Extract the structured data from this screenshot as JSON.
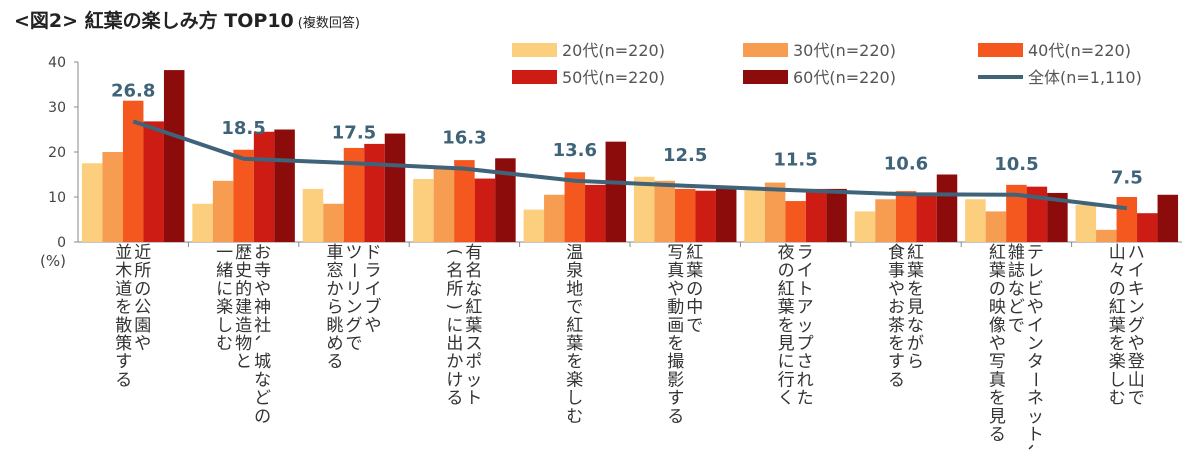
{
  "title": "<図2> 紅葉の楽しみ方 TOP10",
  "title_sub": "(複数回答)",
  "chart_data": {
    "type": "bar",
    "y_unit_label": "(%)",
    "ylim": [
      0,
      40
    ],
    "yticks": [
      "0",
      "10",
      "20",
      "30",
      "40"
    ],
    "categories": [
      [
        "近所の公園や",
        "並木道を散策する"
      ],
      [
        "お寺や神社、城などの",
        "歴史的建造物と",
        "一緒に楽しむ"
      ],
      [
        "ドライブや",
        "ツーリングで",
        "車窓から眺める"
      ],
      [
        "有名な紅葉スポット",
        "(名所)に出かける"
      ],
      [
        "温泉地で紅葉を楽しむ"
      ],
      [
        "紅葉の中で",
        "写真や動画を撮影する"
      ],
      [
        "ライトアップされた",
        "夜の紅葉を見に行く"
      ],
      [
        "紅葉を見ながら",
        "食事やお茶をする"
      ],
      [
        "テレビやインターネット、",
        "雑誌などで",
        "紅葉の映像や写真を見る"
      ],
      [
        "ハイキングや登山で",
        "山々の紅葉を楽しむ"
      ]
    ],
    "series": [
      {
        "name": "20代(n=220)",
        "color": "#fbcf7e",
        "values": [
          17.5,
          8.5,
          11.8,
          14.0,
          7.2,
          14.5,
          11.5,
          6.8,
          9.5,
          8.2
        ]
      },
      {
        "name": "30代(n=220)",
        "color": "#f79d52",
        "values": [
          20.0,
          13.6,
          8.5,
          16.5,
          10.5,
          13.6,
          13.2,
          9.5,
          6.8,
          2.7
        ]
      },
      {
        "name": "40代(n=220)",
        "color": "#f5581f",
        "values": [
          31.4,
          20.5,
          20.9,
          18.2,
          15.5,
          11.8,
          9.1,
          11.3,
          12.7,
          10.0
        ]
      },
      {
        "name": "50代(n=220)",
        "color": "#cc1c14",
        "values": [
          26.8,
          24.5,
          21.8,
          14.1,
          12.7,
          11.4,
          11.8,
          10.9,
          12.3,
          6.4
        ]
      },
      {
        "name": "60代(n=220)",
        "color": "#8c0c0c",
        "values": [
          38.2,
          25.0,
          24.1,
          18.6,
          22.3,
          11.8,
          11.8,
          15.0,
          10.9,
          10.5
        ]
      }
    ],
    "total_series": {
      "name": "全体(n=1,110)",
      "color": "#3f6378",
      "values": [
        26.8,
        18.5,
        17.5,
        16.3,
        13.6,
        12.5,
        11.5,
        10.6,
        10.5,
        7.5
      ],
      "labels": [
        "26.8",
        "18.5",
        "17.5",
        "16.3",
        "13.6",
        "12.5",
        "11.5",
        "10.6",
        "10.5",
        "7.5"
      ]
    },
    "legend_position": "top-right",
    "grid": false
  }
}
